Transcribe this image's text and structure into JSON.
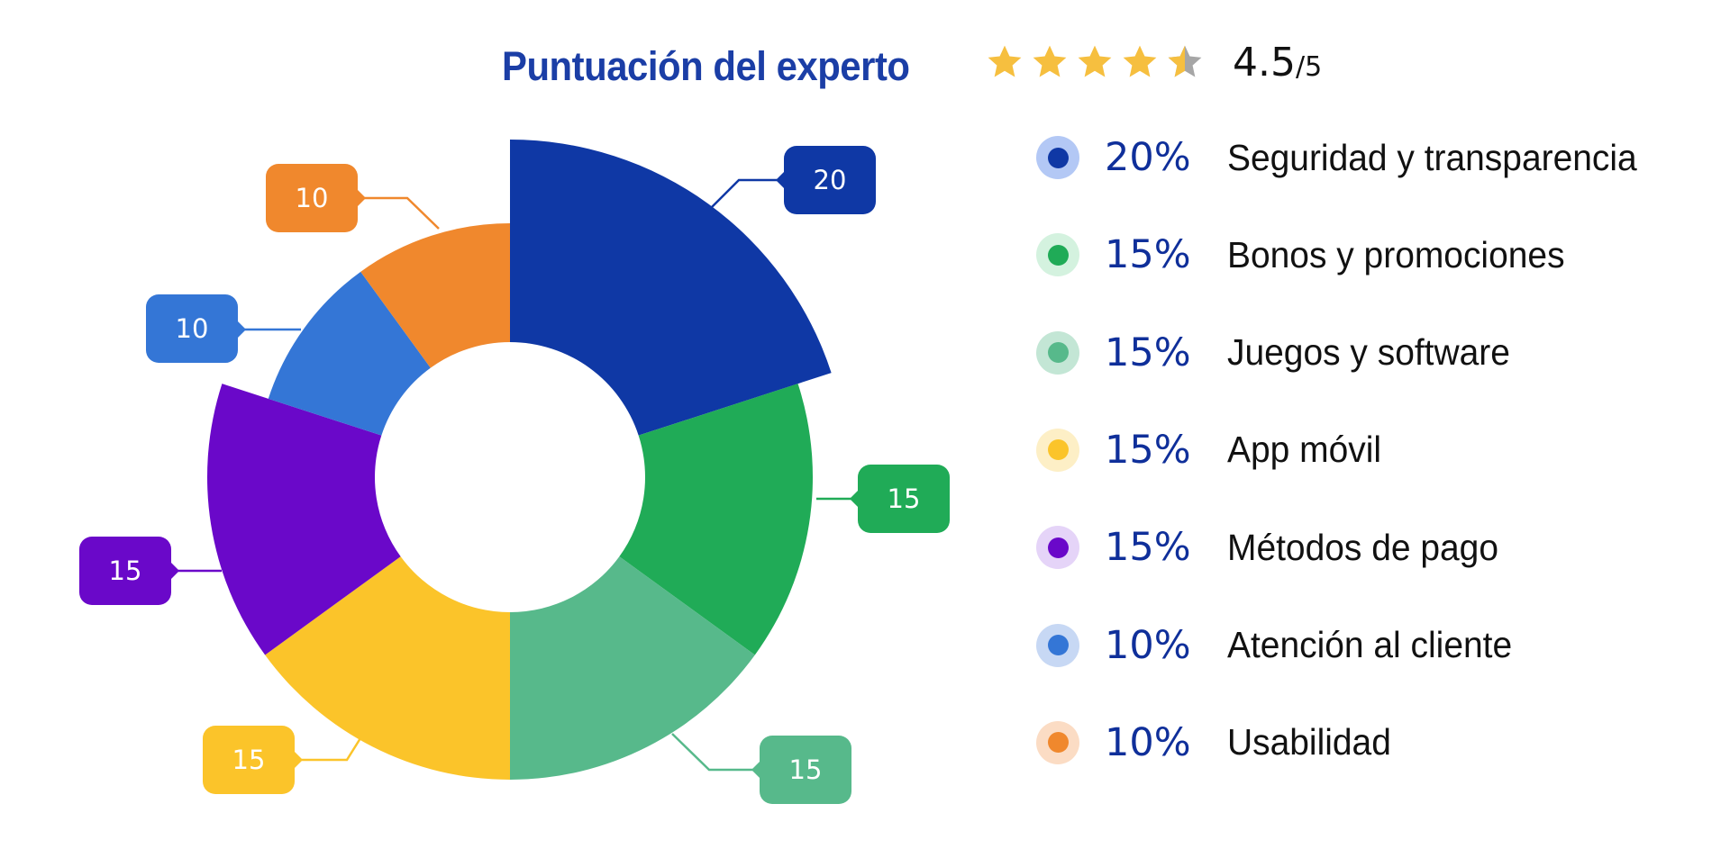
{
  "header": {
    "title": "Puntuación del experto",
    "rating": "4.5",
    "rating_max": "/5",
    "stars": {
      "full": 4,
      "half": 1,
      "empty": 0,
      "color_on": "#f6bf3f",
      "color_off": "#a6a6a6"
    }
  },
  "chart_data": {
    "type": "pie",
    "subtype": "variable-radius donut (nightingale)",
    "title": "Puntuación del experto",
    "categories": [
      "Seguridad y transparencia",
      "Bonos y promociones",
      "Juegos y software",
      "App móvil",
      "Métodos de pago",
      "Atención al cliente",
      "Usabilidad"
    ],
    "values": [
      20,
      15,
      15,
      15,
      15,
      10,
      10
    ],
    "percent_labels": [
      "20%",
      "15%",
      "15%",
      "15%",
      "15%",
      "10%",
      "10%"
    ],
    "colors": [
      "#0f38a5",
      "#20ab57",
      "#57b98b",
      "#fbc42a",
      "#6a08c9",
      "#3476d6",
      "#f0882d"
    ],
    "legend_dot_halo": [
      "#b3c8f5",
      "#d4f2df",
      "#c3e6d5",
      "#fdefc6",
      "#e5d4f8",
      "#c7d8f4",
      "#fbdcc4"
    ],
    "data_labels": [
      "20",
      "15",
      "15",
      "15",
      "15",
      "10",
      "10"
    ],
    "legend_position": "right",
    "start_angle_deg": 0,
    "direction": "clockwise"
  },
  "legend": [
    {
      "percent": "20%",
      "label": "Seguridad y transparencia"
    },
    {
      "percent": "15%",
      "label": "Bonos y promociones"
    },
    {
      "percent": "15%",
      "label": "Juegos y software"
    },
    {
      "percent": "15%",
      "label": "App móvil"
    },
    {
      "percent": "15%",
      "label": "Métodos de pago"
    },
    {
      "percent": "10%",
      "label": "Atención al cliente"
    },
    {
      "percent": "10%",
      "label": "Usabilidad"
    }
  ]
}
